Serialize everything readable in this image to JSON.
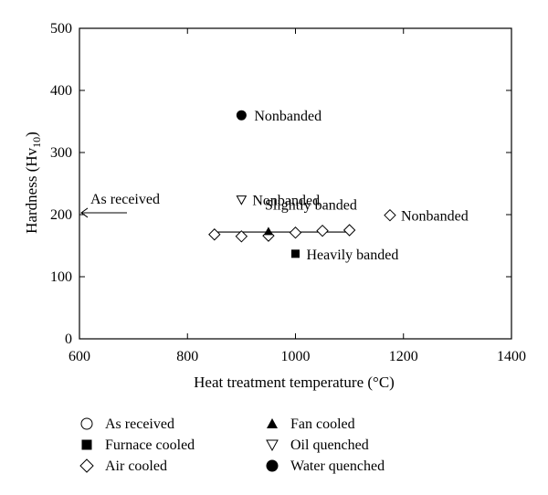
{
  "chart_data": {
    "type": "scatter",
    "xlabel": "Heat treatment temperature (°C)",
    "ylabel": "Hardness (Hv",
    "ylabel_sub": "10",
    "ylabel_close": ")",
    "xlim": [
      600,
      1400
    ],
    "ylim": [
      0,
      500
    ],
    "x_ticks": [
      600,
      800,
      1000,
      1200,
      1400
    ],
    "y_ticks": [
      0,
      100,
      200,
      300,
      400,
      500
    ],
    "grid": false,
    "legend_position": "bottom",
    "series": [
      {
        "name": "As received",
        "marker": "circle-open",
        "points": []
      },
      {
        "name": "Furnace cooled",
        "marker": "square-filled",
        "points": [
          {
            "x": 1000,
            "y": 137
          }
        ]
      },
      {
        "name": "Air cooled",
        "marker": "diamond-open",
        "points": [
          {
            "x": 850,
            "y": 168
          },
          {
            "x": 900,
            "y": 165
          },
          {
            "x": 950,
            "y": 166
          },
          {
            "x": 1000,
            "y": 171
          },
          {
            "x": 1050,
            "y": 174
          },
          {
            "x": 1100,
            "y": 175
          },
          {
            "x": 1175,
            "y": 199
          }
        ]
      },
      {
        "name": "Fan cooled",
        "marker": "triangle-up-filled",
        "points": [
          {
            "x": 950,
            "y": 173
          }
        ]
      },
      {
        "name": "Oil quenched",
        "marker": "triangle-down-open",
        "points": [
          {
            "x": 900,
            "y": 224
          }
        ]
      },
      {
        "name": "Water quenched",
        "marker": "circle-filled",
        "points": [
          {
            "x": 900,
            "y": 360
          }
        ]
      }
    ],
    "trend_line": {
      "x": [
        850,
        1100
      ],
      "y": [
        172,
        172
      ]
    },
    "annotations": [
      {
        "text": "Nonbanded",
        "x": 900,
        "y": 360
      },
      {
        "text": "Nonbanded",
        "x": 900,
        "y": 224
      },
      {
        "text": "Slightly banded",
        "x": 950,
        "y": 195
      },
      {
        "text": "Nonbanded",
        "x": 1175,
        "y": 199
      },
      {
        "text": "Heavily banded",
        "x": 1000,
        "y": 137
      }
    ],
    "as_received": {
      "text": "As received",
      "value": 203
    }
  }
}
